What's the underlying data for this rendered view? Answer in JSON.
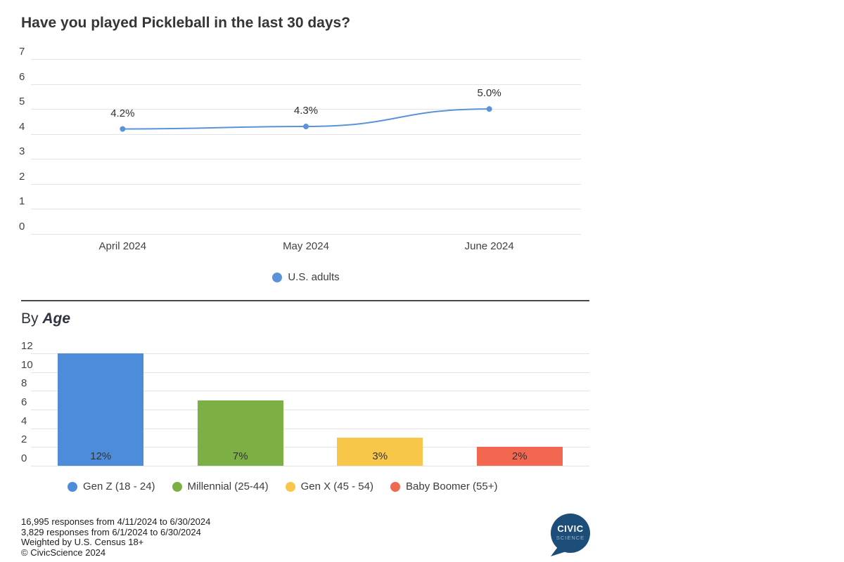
{
  "title": "Have you played Pickleball in the last 30 days?",
  "chart_data": [
    {
      "type": "line",
      "title": "Have you played Pickleball in the last 30 days?",
      "categories": [
        "April 2024",
        "May 2024",
        "June 2024"
      ],
      "series": [
        {
          "name": "U.S. adults",
          "values": [
            4.2,
            4.3,
            5.0
          ],
          "color": "#5b93d8"
        }
      ],
      "point_labels": [
        "4.2%",
        "4.3%",
        "5.0%"
      ],
      "unit": "%",
      "ylim": [
        0,
        7
      ],
      "y_ticks": [
        7,
        6,
        5,
        4,
        3,
        2,
        1,
        0
      ],
      "grid": true,
      "legend_position": "bottom"
    },
    {
      "type": "bar",
      "title": "By Age",
      "categories": [
        "Gen Z (18 - 24)",
        "Millennial (25-44)",
        "Gen X (45 - 54)",
        "Baby Boomer (55+)"
      ],
      "values": [
        12,
        7,
        3,
        2
      ],
      "bar_labels": [
        "12%",
        "7%",
        "3%",
        "2%"
      ],
      "colors": [
        "#4d8cd9",
        "#7cb045",
        "#f8c74a",
        "#f2674f"
      ],
      "unit": "%",
      "ylim": [
        0,
        12
      ],
      "y_ticks": [
        12,
        10,
        8,
        6,
        4,
        2,
        0
      ],
      "grid": true,
      "legend_position": "bottom"
    }
  ],
  "by_age_heading": {
    "prefix": "By",
    "emphasis": "Age"
  },
  "footer": {
    "lines": [
      "16,995 responses from 4/11/2024 to 6/30/2024",
      "3,829 responses from 6/1/2024 to 6/30/2024",
      "Weighted by U.S. Census 18+",
      "© CivicScience 2024"
    ]
  },
  "logo": {
    "line1": "CIVIC",
    "line2": "SCIENCE",
    "bubble_color": "#1d4e79",
    "subtext_color": "#9db3c9"
  }
}
